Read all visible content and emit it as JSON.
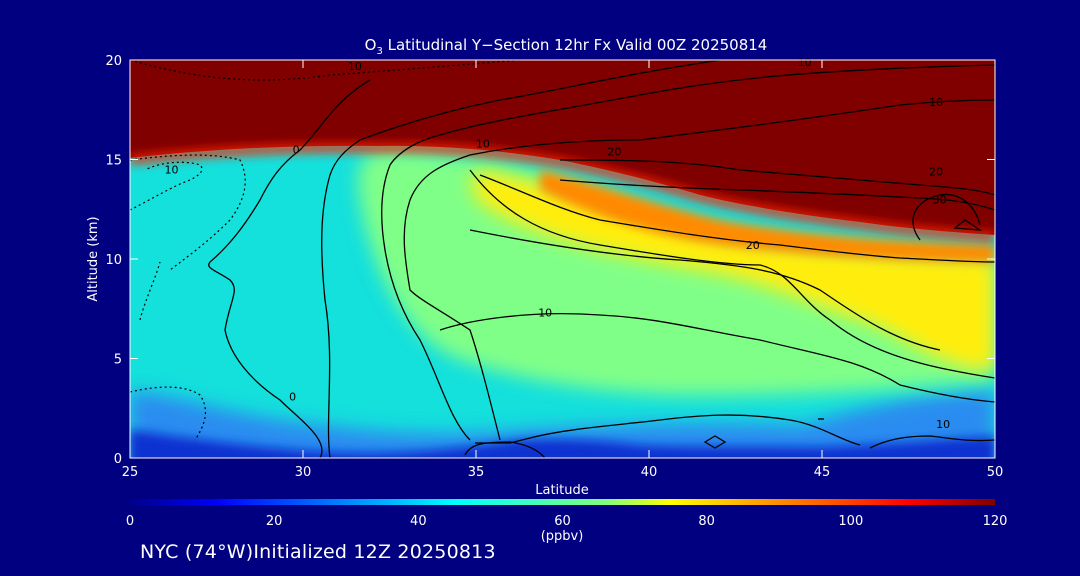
{
  "chart_data": {
    "type": "heatmap",
    "title_prefix": "O",
    "title_sub": "3",
    "title_rest": " Latitudinal Y−Section 12hr  Fx Valid 00Z 20250814",
    "xlabel": "Latitude",
    "ylabel": "Altitude (km)",
    "xlim": [
      25,
      50
    ],
    "ylim": [
      0,
      20
    ],
    "xticks": [
      "25",
      "30",
      "35",
      "40",
      "45",
      "50"
    ],
    "yticks": [
      "0",
      "5",
      "10",
      "15",
      "20"
    ],
    "colorbar": {
      "range": [
        0,
        120
      ],
      "ticks": [
        "0",
        "20",
        "40",
        "60",
        "80",
        "100",
        "120"
      ],
      "unit": "(ppbv)"
    },
    "contour_labels": [
      {
        "text": "10",
        "lat": 31.5,
        "alt": 19.7
      },
      {
        "text": "10",
        "lat": 44.5,
        "alt": 20.0
      },
      {
        "text": "10",
        "lat": 48.3,
        "alt": 17.9
      },
      {
        "text": "10",
        "lat": 26.2,
        "alt": 14.5
      },
      {
        "text": "0",
        "lat": 29.8,
        "alt": 15.5
      },
      {
        "text": "10",
        "lat": 35.2,
        "alt": 15.8
      },
      {
        "text": "20",
        "lat": 39.0,
        "alt": 15.4
      },
      {
        "text": "20",
        "lat": 48.3,
        "alt": 14.4
      },
      {
        "text": "30",
        "lat": 48.4,
        "alt": 13.0
      },
      {
        "text": "20",
        "lat": 43.0,
        "alt": 10.7
      },
      {
        "text": "10",
        "lat": 37.0,
        "alt": 7.3
      },
      {
        "text": "0",
        "lat": 29.7,
        "alt": 3.1
      },
      {
        "text": "10",
        "lat": 48.5,
        "alt": 1.7
      }
    ]
  },
  "footer": "NYC (74°W)Initialized 12Z 20250813"
}
